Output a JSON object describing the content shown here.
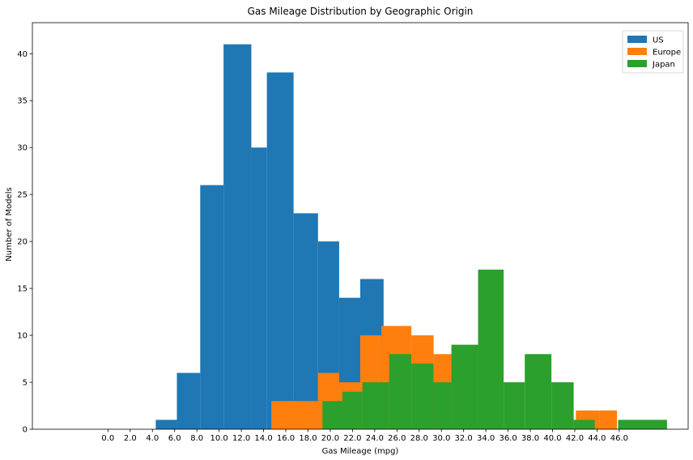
{
  "chart_data": {
    "type": "bar",
    "title": "Gas Mileage Distribution by Geographic Origin",
    "xlabel": "Gas Mileage (mpg)",
    "ylabel": "Number of Models",
    "xlim": [
      -6.8,
      52.2
    ],
    "ylim": [
      0,
      43.3
    ],
    "xticks": [
      "0.0",
      "2.0",
      "4.0",
      "6.0",
      "8.0",
      "10.0",
      "12.0",
      "14.0",
      "16.0",
      "18.0",
      "20.0",
      "22.0",
      "24.0",
      "26.0",
      "28.0",
      "30.0",
      "32.0",
      "34.0",
      "36.0",
      "38.0",
      "40.0",
      "42.0",
      "44.0",
      "46.0"
    ],
    "yticks": [
      0,
      5,
      10,
      15,
      20,
      25,
      30,
      35,
      40
    ],
    "legend": "top-right",
    "grid": false,
    "series": [
      {
        "name": "US",
        "color": "#1f77b4",
        "bin_edges": [
          4.3,
          6.2,
          8.3,
          10.4,
          12.9,
          14.3,
          16.7,
          18.9,
          20.8,
          22.7,
          24.8
        ],
        "counts": [
          1,
          6,
          26,
          41,
          30,
          38,
          23,
          20,
          14,
          16
        ]
      },
      {
        "name": "Europe",
        "color": "#ff7f0e",
        "bin_edges": [
          14.7,
          18.9,
          20.8,
          22.7,
          24.6,
          27.3,
          29.3,
          31.2,
          42.1,
          44.2,
          45.8
        ],
        "counts": [
          3,
          6,
          5,
          10,
          11,
          10,
          8,
          0,
          2,
          2
        ]
      },
      {
        "name": "Japan",
        "color": "#2ca02c",
        "bin_edges": [
          19.3,
          21.1,
          22.9,
          25.3,
          27.3,
          29.3,
          30.9,
          33.3,
          35.6,
          37.5,
          39.9,
          41.9,
          43.8,
          45.9,
          50.3
        ],
        "counts": [
          3,
          4,
          5,
          8,
          7,
          5,
          9,
          17,
          5,
          8,
          5,
          1,
          0,
          1
        ]
      }
    ]
  }
}
